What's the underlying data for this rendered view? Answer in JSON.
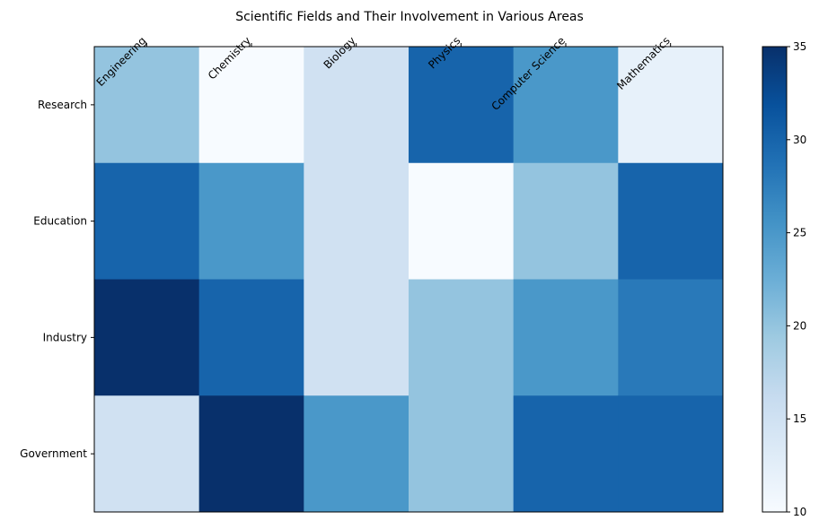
{
  "chart_data": {
    "type": "heatmap",
    "title": "Scientific Fields and Their Involvement in Various Areas",
    "x_categories": [
      "Engineering",
      "Chemistry",
      "Biology",
      "Physics",
      "Computer Science",
      "Mathematics"
    ],
    "y_categories": [
      "Research",
      "Education",
      "Industry",
      "Government"
    ],
    "values": [
      [
        20,
        10,
        15,
        30,
        25,
        12
      ],
      [
        30,
        25,
        15,
        10,
        20,
        30
      ],
      [
        35,
        30,
        15,
        20,
        25,
        28
      ],
      [
        15,
        35,
        25,
        20,
        30,
        30
      ]
    ],
    "colorbar": {
      "min": 10,
      "max": 35,
      "ticks": [
        10,
        15,
        20,
        25,
        30,
        35
      ],
      "colormap": "Blues"
    },
    "x_tick_position": "top",
    "x_tick_rotation": 45,
    "grid": false
  }
}
